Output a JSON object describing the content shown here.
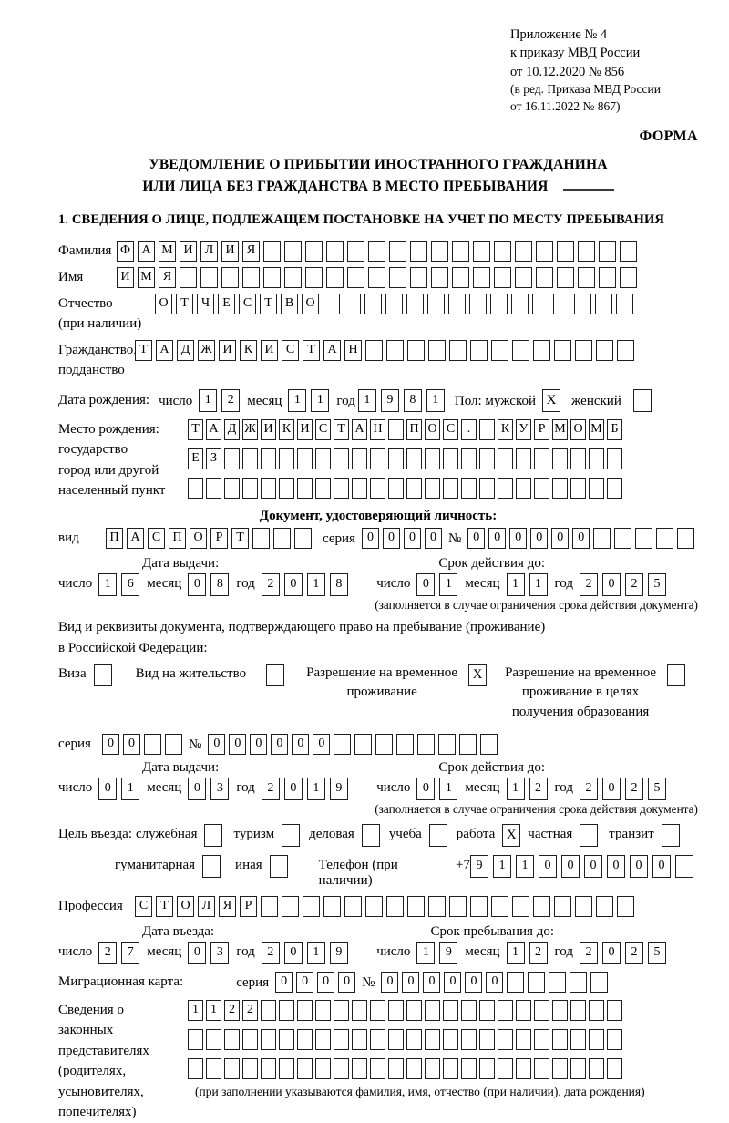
{
  "labels": {
    "day": "число",
    "month": "месяц",
    "year": "год",
    "series": "серия",
    "number": "№",
    "kind": "вид",
    "issue_date": "Дата выдачи:",
    "valid_until": "Срок действия до:",
    "validity_note": "(заполняется в случае ограничения срока действия документа)"
  },
  "header": {
    "lines": [
      "Приложение № 4",
      "к приказу МВД России",
      "от 10.12.2020 № 856"
    ],
    "amendment": [
      "(в ред. Приказа МВД России",
      "от 16.11.2022 № 867)"
    ],
    "form_label": "ФОРМА"
  },
  "title": {
    "line1": "УВЕДОМЛЕНИЕ О ПРИБЫТИИ ИНОСТРАННОГО ГРАЖДАНИНА",
    "line2": "ИЛИ ЛИЦА БЕЗ ГРАЖДАНСТВА В МЕСТО ПРЕБЫВАНИЯ"
  },
  "section1": {
    "heading": "1. СВЕДЕНИЯ О ЛИЦЕ, ПОДЛЕЖАЩЕМ ПОСТАНОВКЕ НА УЧЕТ ПО МЕСТУ ПРЕБЫВАНИЯ"
  },
  "person": {
    "surname": {
      "label": "Фамилия",
      "boxes": {
        "value": "ФАМИЛИЯ",
        "count": 25
      }
    },
    "given_name": {
      "label": "Имя",
      "boxes": {
        "value": "ИМЯ",
        "count": 25
      }
    },
    "patronymic": {
      "label": "Отчество",
      "label_note": "(при наличии)",
      "boxes": {
        "value": "ОТЧЕСТВО",
        "count": 23
      }
    },
    "citizenship": {
      "label": "Гражданство,",
      "label2": "подданство",
      "boxes": {
        "value": "ТАДЖИКИСТАН",
        "count": 24
      }
    },
    "birth_date": {
      "label": "Дата рождения:",
      "day": {
        "value": "12",
        "count": 2
      },
      "month": {
        "value": "11",
        "count": 2
      },
      "year": {
        "value": "1981",
        "count": 4
      }
    },
    "sex": {
      "label": "Пол: мужской",
      "male": {
        "value": "X",
        "count": 1
      },
      "female_label": "женский",
      "female": {
        "value": "",
        "count": 1
      }
    },
    "birth_place": {
      "label": "Место рождения:",
      "sub1": "государство",
      "sub2": "город или другой",
      "sub3": "населенный пункт",
      "row1": {
        "value": "ТАДЖИКИСТАН ПОС. КУРМОМБ",
        "count": 24
      },
      "row2": {
        "value": "ЕЗ",
        "count": 24
      },
      "row3": {
        "value": "",
        "count": 24
      }
    }
  },
  "identity_doc": {
    "heading": "Документ, удостоверяющий личность:",
    "kind": {
      "value": "ПАСПОРТ",
      "count": 10
    },
    "series": {
      "value": "0000",
      "count": 4
    },
    "number": {
      "value": "000000",
      "count": 11
    },
    "issue": {
      "day": {
        "value": "16",
        "count": 2
      },
      "month": {
        "value": "08",
        "count": 2
      },
      "year": {
        "value": "2018",
        "count": 4
      }
    },
    "valid": {
      "day": {
        "value": "01",
        "count": 2
      },
      "month": {
        "value": "11",
        "count": 2
      },
      "year": {
        "value": "2025",
        "count": 4
      }
    }
  },
  "permit": {
    "intro1": "Вид и реквизиты документа, подтверждающего право на пребывание (проживание)",
    "intro2": "в Российской Федерации:",
    "visa_label": "Виза",
    "visa": {
      "value": "",
      "count": 1
    },
    "residence_label": "Вид на жительство",
    "residence": {
      "value": "",
      "count": 1
    },
    "temp_label1": "Разрешение на временное",
    "temp_label2": "проживание",
    "temp": {
      "value": "X",
      "count": 1
    },
    "edu_label1": "Разрешение на временное",
    "edu_label2": "проживание в целях",
    "edu_label3": "получения образования",
    "edu": {
      "value": "",
      "count": 1
    },
    "series": {
      "value": "00",
      "count": 4
    },
    "number": {
      "value": "000000",
      "count": 14
    },
    "issue": {
      "day": {
        "value": "01",
        "count": 2
      },
      "month": {
        "value": "03",
        "count": 2
      },
      "year": {
        "value": "2019",
        "count": 4
      }
    },
    "valid": {
      "day": {
        "value": "01",
        "count": 2
      },
      "month": {
        "value": "12",
        "count": 2
      },
      "year": {
        "value": "2025",
        "count": 4
      }
    }
  },
  "visit": {
    "purpose_label": "Цель въезда:",
    "options": [
      {
        "label": "служебная",
        "box": {
          "value": "",
          "count": 1
        }
      },
      {
        "label": "туризм",
        "box": {
          "value": "",
          "count": 1
        }
      },
      {
        "label": "деловая",
        "box": {
          "value": "",
          "count": 1
        }
      },
      {
        "label": "учеба",
        "box": {
          "value": "",
          "count": 1
        }
      },
      {
        "label": "работа",
        "box": {
          "value": "X",
          "count": 1
        }
      },
      {
        "label": "частная",
        "box": {
          "value": "",
          "count": 1
        }
      },
      {
        "label": "транзит",
        "box": {
          "value": "",
          "count": 1
        }
      },
      {
        "label": "гуманитарная",
        "box": {
          "value": "",
          "count": 1
        }
      },
      {
        "label": "иная",
        "box": {
          "value": "",
          "count": 1
        }
      }
    ],
    "phone_label": "Телефон (при наличии)",
    "phone_prefix": "+7",
    "phone": {
      "value": "911000000",
      "count": 10
    },
    "profession_label": "Профессия",
    "profession": {
      "value": "СТОЛЯР",
      "count": 24
    },
    "entry_label": "Дата въезда:",
    "entry": {
      "day": {
        "value": "27",
        "count": 2
      },
      "month": {
        "value": "03",
        "count": 2
      },
      "year": {
        "value": "2019",
        "count": 4
      }
    },
    "stay_label": "Срок пребывания до:",
    "stay": {
      "day": {
        "value": "19",
        "count": 2
      },
      "month": {
        "value": "12",
        "count": 2
      },
      "year": {
        "value": "2025",
        "count": 4
      }
    }
  },
  "migration_card": {
    "label": "Миграционная карта:",
    "series": {
      "value": "0000",
      "count": 4
    },
    "number": {
      "value": "000000",
      "count": 11
    }
  },
  "representatives": {
    "label_lines": [
      "Сведения о",
      "законных",
      "представителях",
      "(родителях,",
      "усыновителях,",
      "попечителях)"
    ],
    "row1": {
      "value": "1122",
      "count": 24
    },
    "row2": {
      "value": "",
      "count": 24
    },
    "row3": {
      "value": "",
      "count": 24
    },
    "footnote": "(при заполнении указываются фамилия, имя, отчество (при наличии), дата рождения)"
  }
}
